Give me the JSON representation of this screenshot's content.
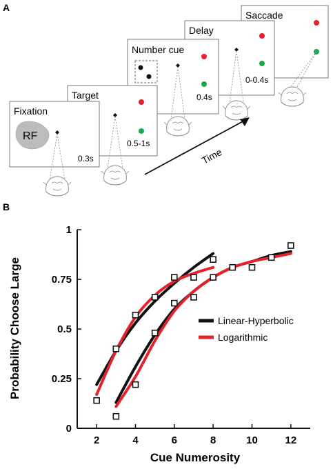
{
  "panel_a": {
    "letter": "A",
    "frames": [
      {
        "label": "Fixation",
        "duration": "0.3s",
        "rf_label": "RF"
      },
      {
        "label": "Target",
        "duration": "0.5-1s"
      },
      {
        "label": "Number cue",
        "duration": "0.4s"
      },
      {
        "label": "Delay",
        "duration": "0-0.4s"
      },
      {
        "label": "Saccade",
        "duration": ""
      }
    ],
    "time_label": "Time",
    "colors": {
      "red_target": "#e8202a",
      "green_target": "#19a84a",
      "rf_fill": "#bcbcbc",
      "frame_border": "#777777"
    }
  },
  "panel_b": {
    "letter": "B"
  },
  "chart_data": {
    "type": "line",
    "xlabel": "Cue Numerosity",
    "ylabel": "Probability Choose Large",
    "xlim": [
      1,
      13
    ],
    "ylim": [
      0,
      1
    ],
    "xticks": [
      2,
      4,
      6,
      8,
      10,
      12
    ],
    "ytick_labels": [
      "0",
      "0.25",
      "0.5",
      "0.75",
      "1"
    ],
    "yticks": [
      0,
      0.25,
      0.5,
      0.75,
      1
    ],
    "grid": false,
    "legend_position": "right",
    "data_points": [
      {
        "name": "",
        "x": [
          2,
          3,
          4,
          5,
          6,
          7,
          8
        ],
        "y": [
          0.14,
          0.4,
          0.57,
          0.66,
          0.76,
          0.76,
          0.85
        ]
      },
      {
        "name": "",
        "x": [
          3,
          4,
          5,
          6,
          7,
          8,
          9,
          10,
          11,
          12
        ],
        "y": [
          0.06,
          0.22,
          0.48,
          0.63,
          0.66,
          0.76,
          0.81,
          0.81,
          0.86,
          0.92
        ]
      }
    ],
    "fits": [
      {
        "name": "Linear-Hyperbolic",
        "color": "#111111",
        "curves": [
          {
            "x": [
              2,
              3,
              4,
              5,
              6,
              7,
              8
            ],
            "y": [
              0.22,
              0.39,
              0.53,
              0.64,
              0.73,
              0.81,
              0.88
            ]
          },
          {
            "x": [
              3,
              4,
              5,
              6,
              7,
              8,
              9,
              10,
              11,
              12
            ],
            "y": [
              0.13,
              0.31,
              0.47,
              0.6,
              0.69,
              0.76,
              0.81,
              0.84,
              0.87,
              0.89
            ]
          }
        ]
      },
      {
        "name": "Logarithmic",
        "color": "#e3222c",
        "curves": [
          {
            "x": [
              2,
              3,
              4,
              5,
              6,
              7,
              8
            ],
            "y": [
              0.17,
              0.39,
              0.56,
              0.67,
              0.74,
              0.78,
              0.81
            ]
          },
          {
            "x": [
              3,
              4,
              5,
              6,
              7,
              8,
              9,
              10,
              11,
              12
            ],
            "y": [
              0.11,
              0.26,
              0.44,
              0.59,
              0.69,
              0.76,
              0.81,
              0.84,
              0.86,
              0.88
            ]
          }
        ]
      }
    ]
  }
}
